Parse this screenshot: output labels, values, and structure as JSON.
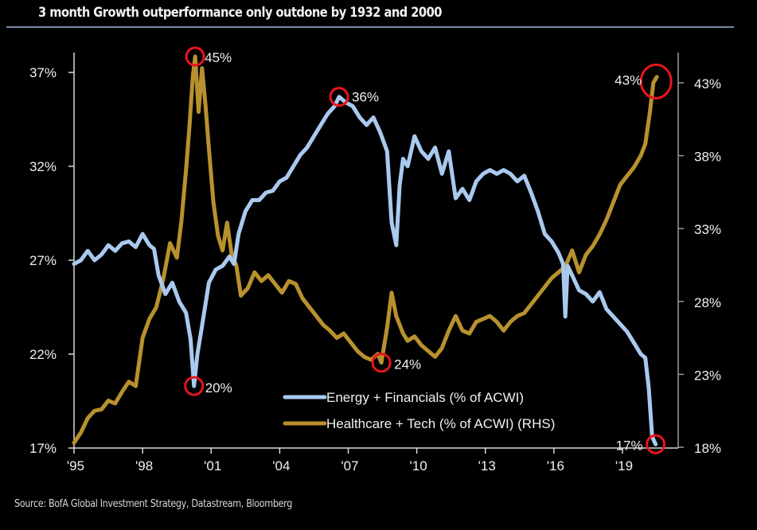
{
  "title": "3 month Growth outperformance only outdone by 1932 and 2000",
  "source": "Source: BofA Global Investment Strategy, Datastream, Bloomberg",
  "colors": {
    "background": "#000000",
    "energy_financials": "#a9c9ef",
    "healthcare_tech": "#b8912e",
    "highlight": "#e8141c",
    "axis": "#d9d9d9",
    "title_rule": "#7a8aa3"
  },
  "chart_data": {
    "type": "line",
    "title": "3 month Growth outperformance only outdone by 1932 and 2000",
    "xlabel": "",
    "ylabel": "",
    "x_ticks": [
      "'95",
      "'98",
      "'01",
      "'04",
      "'07",
      "'10",
      "'13",
      "'16",
      "'19"
    ],
    "x_tick_years": [
      1995,
      1998,
      2001,
      2004,
      2007,
      2010,
      2013,
      2016,
      2019
    ],
    "xlim": [
      1995,
      2020.8
    ],
    "y_left": {
      "ticks": [
        "37%",
        "32%",
        "27%",
        "22%",
        "17%"
      ],
      "tick_values": [
        37,
        32,
        27,
        22,
        17
      ],
      "ylim": [
        17,
        37.6
      ]
    },
    "y_right": {
      "ticks": [
        "43%",
        "38%",
        "33%",
        "28%",
        "23%",
        "18%"
      ],
      "tick_values": [
        43,
        38,
        33,
        28,
        23,
        18
      ],
      "ylim": [
        18,
        43.7
      ]
    },
    "grid": false,
    "legend_position": "bottom-center",
    "series": [
      {
        "name": "Energy + Financials (% of ACWI)",
        "axis": "left",
        "x": [
          1995.0,
          1995.3,
          1995.6,
          1995.9,
          1996.2,
          1996.5,
          1996.8,
          1997.1,
          1997.4,
          1997.7,
          1998.0,
          1998.3,
          1998.5,
          1998.7,
          1999.0,
          1999.3,
          1999.6,
          1999.9,
          2000.1,
          2000.25,
          2000.4,
          2000.6,
          2000.9,
          2001.2,
          2001.5,
          2001.8,
          2002.0,
          2002.2,
          2002.5,
          2002.8,
          2003.1,
          2003.4,
          2003.7,
          2004.0,
          2004.3,
          2004.6,
          2004.9,
          2005.2,
          2005.5,
          2005.8,
          2006.1,
          2006.4,
          2006.6,
          2006.9,
          2007.2,
          2007.5,
          2007.8,
          2008.1,
          2008.4,
          2008.7,
          2008.9,
          2009.1,
          2009.25,
          2009.4,
          2009.6,
          2009.9,
          2010.2,
          2010.5,
          2010.8,
          2011.1,
          2011.4,
          2011.7,
          2012.0,
          2012.3,
          2012.6,
          2012.9,
          2013.2,
          2013.5,
          2013.8,
          2014.1,
          2014.4,
          2014.7,
          2015.0,
          2015.3,
          2015.6,
          2015.9,
          2016.2,
          2016.4,
          2016.5,
          2016.6,
          2016.8,
          2017.1,
          2017.4,
          2017.7,
          2018.0,
          2018.3,
          2018.6,
          2018.9,
          2019.2,
          2019.5,
          2019.8,
          2020.0,
          2020.15,
          2020.3,
          2020.45
        ],
        "values": [
          26.8,
          27.0,
          27.5,
          27.0,
          27.3,
          27.8,
          27.5,
          27.9,
          28.0,
          27.7,
          28.4,
          27.8,
          27.6,
          26.2,
          25.2,
          25.8,
          24.8,
          24.2,
          22.8,
          20.3,
          22.0,
          23.5,
          25.8,
          26.5,
          26.7,
          27.2,
          26.8,
          28.4,
          29.6,
          30.2,
          30.2,
          30.6,
          30.7,
          31.2,
          31.4,
          32.0,
          32.6,
          33.0,
          33.6,
          34.2,
          34.8,
          35.2,
          35.7,
          35.4,
          35.2,
          34.6,
          34.2,
          34.6,
          33.8,
          32.8,
          29.0,
          27.8,
          31.0,
          32.4,
          32.0,
          33.6,
          32.8,
          32.4,
          33.0,
          31.6,
          32.8,
          30.3,
          30.8,
          30.2,
          31.2,
          31.6,
          31.8,
          31.6,
          31.8,
          31.6,
          31.2,
          31.5,
          30.6,
          29.6,
          28.4,
          28.0,
          27.4,
          26.8,
          24.0,
          26.7,
          26.2,
          25.4,
          25.2,
          24.8,
          25.3,
          24.4,
          24.0,
          23.6,
          23.2,
          22.6,
          22.0,
          21.8,
          20.2,
          17.6,
          17.2
        ]
      },
      {
        "name": "Healthcare + Tech (% of ACWI) (RHS)",
        "axis": "right",
        "x": [
          1995.0,
          1995.3,
          1995.6,
          1995.9,
          1996.2,
          1996.5,
          1996.8,
          1997.1,
          1997.4,
          1997.7,
          1998.0,
          1998.3,
          1998.6,
          1998.9,
          1999.2,
          1999.5,
          1999.7,
          1999.9,
          2000.05,
          2000.2,
          2000.3,
          2000.45,
          2000.6,
          2000.75,
          2000.9,
          2001.1,
          2001.3,
          2001.5,
          2001.7,
          2001.9,
          2002.1,
          2002.3,
          2002.6,
          2002.9,
          2003.2,
          2003.5,
          2003.8,
          2004.1,
          2004.4,
          2004.7,
          2005.0,
          2005.3,
          2005.6,
          2005.9,
          2006.2,
          2006.5,
          2006.8,
          2007.1,
          2007.4,
          2007.7,
          2008.0,
          2008.3,
          2008.45,
          2008.7,
          2008.9,
          2009.1,
          2009.25,
          2009.4,
          2009.6,
          2009.9,
          2010.2,
          2010.5,
          2010.8,
          2011.1,
          2011.4,
          2011.7,
          2012.0,
          2012.3,
          2012.6,
          2012.9,
          2013.2,
          2013.5,
          2013.8,
          2014.1,
          2014.4,
          2014.7,
          2015.0,
          2015.3,
          2015.6,
          2015.9,
          2016.2,
          2016.5,
          2016.8,
          2017.1,
          2017.4,
          2017.7,
          2018.0,
          2018.3,
          2018.6,
          2018.9,
          2019.2,
          2019.5,
          2019.8,
          2020.0,
          2020.2,
          2020.35,
          2020.5
        ],
        "values": [
          18.3,
          19.0,
          20.0,
          20.5,
          20.6,
          21.2,
          21.0,
          21.8,
          22.5,
          22.2,
          25.5,
          26.8,
          27.6,
          29.5,
          32.0,
          31.0,
          33.5,
          37.0,
          40.0,
          43.5,
          44.8,
          41.0,
          44.0,
          41.5,
          38.5,
          34.8,
          32.5,
          31.5,
          33.4,
          31.2,
          30.5,
          28.4,
          28.9,
          30.0,
          29.4,
          29.8,
          29.2,
          28.6,
          29.4,
          29.2,
          28.2,
          27.6,
          27.0,
          26.4,
          26.0,
          25.5,
          25.8,
          25.2,
          24.6,
          24.2,
          24.0,
          24.4,
          23.8,
          26.2,
          28.6,
          27.0,
          26.4,
          25.8,
          25.3,
          25.6,
          25.0,
          24.6,
          24.2,
          24.8,
          26.0,
          27.0,
          26.0,
          25.8,
          26.6,
          26.8,
          27.0,
          26.6,
          26.0,
          26.6,
          27.0,
          27.2,
          27.8,
          28.4,
          29.0,
          29.6,
          30.0,
          30.4,
          31.5,
          30.0,
          31.2,
          31.8,
          32.6,
          33.6,
          34.8,
          36.0,
          36.6,
          37.2,
          38.0,
          38.8,
          41.0,
          43.0,
          43.4
        ]
      }
    ],
    "annotations": [
      {
        "label": "45%",
        "series": "Healthcare + Tech (% of ACWI) (RHS)",
        "x": 2000.3,
        "value": 44.8,
        "marker": "red-circle"
      },
      {
        "label": "20%",
        "series": "Energy + Financials (% of ACWI)",
        "x": 2000.25,
        "value": 20.3,
        "marker": "red-circle"
      },
      {
        "label": "36%",
        "series": "Energy + Financials (% of ACWI)",
        "x": 2006.6,
        "value": 35.7,
        "marker": "red-circle"
      },
      {
        "label": "24%",
        "series": "Healthcare + Tech (% of ACWI) (RHS)",
        "x": 2008.45,
        "value": 23.8,
        "marker": "red-circle"
      },
      {
        "label": "43%",
        "series": "Healthcare + Tech (% of ACWI) (RHS)",
        "x": 2020.4,
        "value": 43.2,
        "marker": "red-circle"
      },
      {
        "label": "17%",
        "series": "Energy + Financials (% of ACWI)",
        "x": 2020.45,
        "value": 17.2,
        "marker": "red-circle"
      }
    ]
  }
}
